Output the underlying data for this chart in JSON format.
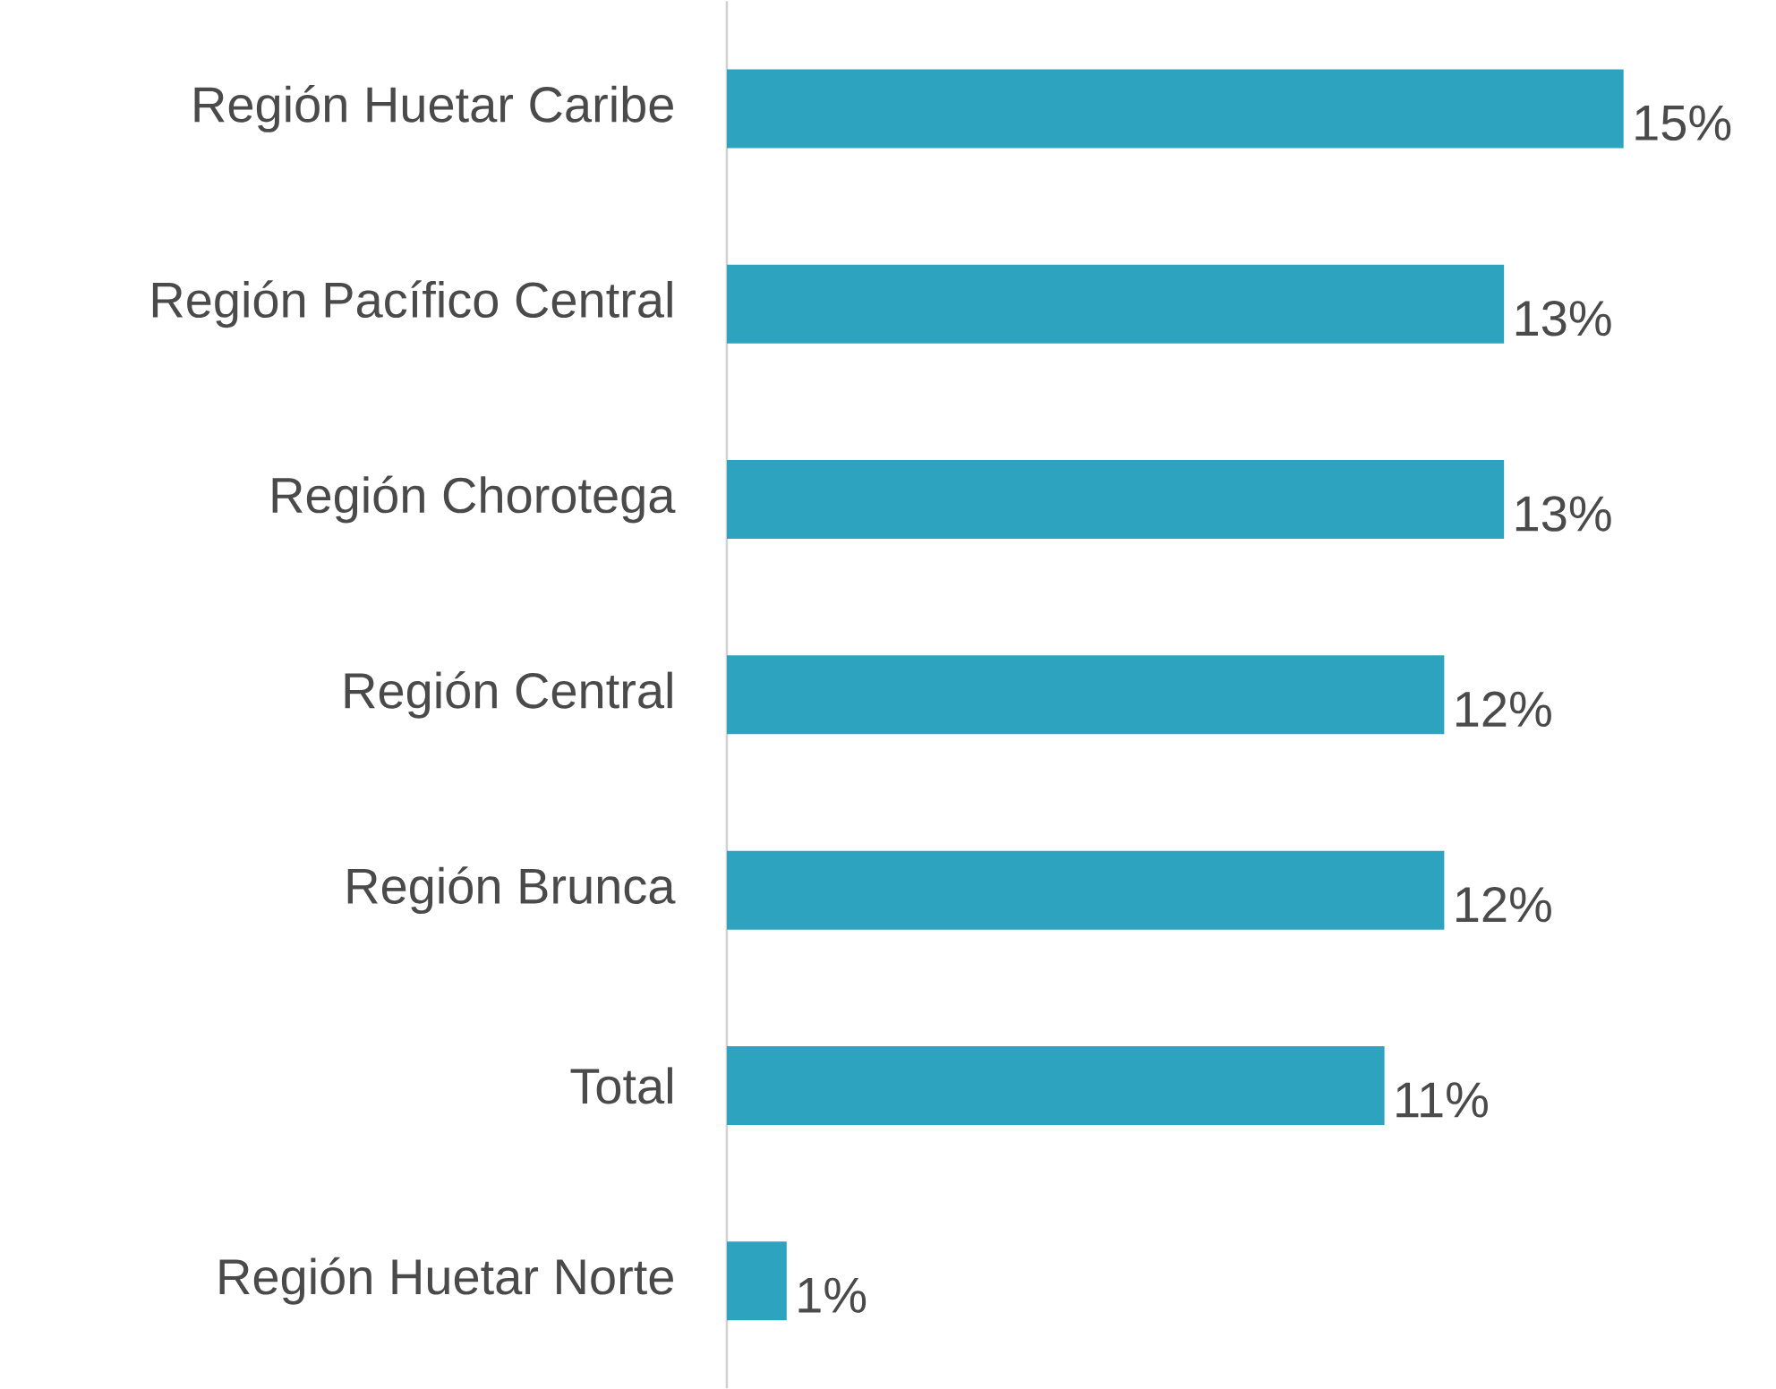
{
  "chart_data": {
    "type": "bar",
    "orientation": "horizontal",
    "categories": [
      "Región Huetar Caribe",
      "Región Pacífico Central",
      "Región Chorotega",
      "Región Central",
      "Región Brunca",
      "Total",
      "Región Huetar Norte"
    ],
    "values": [
      15,
      13,
      13,
      12,
      12,
      11,
      1
    ],
    "value_labels": [
      "15%",
      "13%",
      "13%",
      "12%",
      "12%",
      "11%",
      "1%"
    ],
    "color": "#2ea3bf"
  }
}
